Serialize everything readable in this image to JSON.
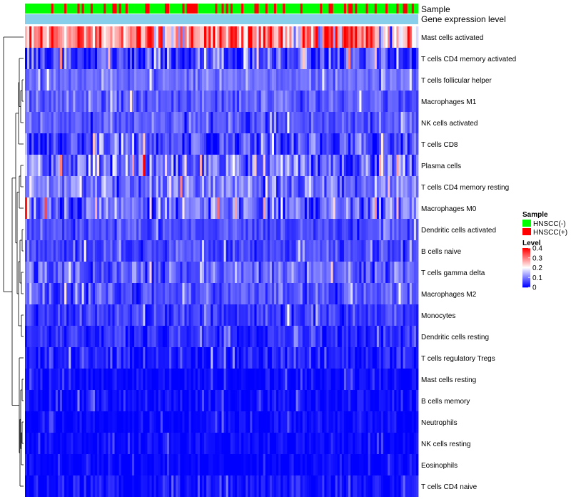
{
  "chart_data": {
    "type": "heatmap",
    "annotation_tracks": [
      "Sample",
      "Gene expression level"
    ],
    "rows": [
      {
        "label": "Mast cells activated",
        "mean": 0.28,
        "spread": 0.13
      },
      {
        "label": "T cells CD4 memory activated",
        "mean": 0.05,
        "spread": 0.07
      },
      {
        "label": "T cells follicular helper",
        "mean": 0.085,
        "spread": 0.03
      },
      {
        "label": "Macrophages M1",
        "mean": 0.075,
        "spread": 0.035
      },
      {
        "label": "NK cells activated",
        "mean": 0.07,
        "spread": 0.035
      },
      {
        "label": "T cells CD8",
        "mean": 0.06,
        "spread": 0.06
      },
      {
        "label": "Plasma cells",
        "mean": 0.09,
        "spread": 0.08
      },
      {
        "label": "T cells CD4 memory resting",
        "mean": 0.095,
        "spread": 0.06
      },
      {
        "label": "Macrophages M0",
        "mean": 0.09,
        "spread": 0.08
      },
      {
        "label": "Dendritic cells activated",
        "mean": 0.06,
        "spread": 0.03
      },
      {
        "label": "B cells naive",
        "mean": 0.055,
        "spread": 0.035
      },
      {
        "label": "T cells gamma delta",
        "mean": 0.08,
        "spread": 0.05
      },
      {
        "label": "Macrophages M2",
        "mean": 0.065,
        "spread": 0.04
      },
      {
        "label": "Monocytes",
        "mean": 0.045,
        "spread": 0.035
      },
      {
        "label": "Dendritic cells resting",
        "mean": 0.035,
        "spread": 0.035
      },
      {
        "label": "T cells regulatory  Tregs",
        "mean": 0.025,
        "spread": 0.04
      },
      {
        "label": "Mast cells resting",
        "mean": 0.006,
        "spread": 0.02
      },
      {
        "label": "B cells memory",
        "mean": 0.008,
        "spread": 0.025
      },
      {
        "label": "Neutrophils",
        "mean": 0.006,
        "spread": 0.02
      },
      {
        "label": "NK cells resting",
        "mean": 0.006,
        "spread": 0.02
      },
      {
        "label": "Eosinophils",
        "mean": 0.004,
        "spread": 0.015
      },
      {
        "label": "T cells CD4 naive",
        "mean": 0.01,
        "spread": 0.03
      }
    ],
    "n_samples": 180,
    "color_scale": {
      "min": 0,
      "max": 0.4,
      "ticks": [
        0.4,
        0.3,
        0.2,
        0.1,
        0
      ],
      "low": "#0000ff",
      "mid": "#ffffff",
      "high": "#ff0000",
      "mid_value": 0.2
    },
    "legend": {
      "sample_title": "Sample",
      "sample_entries": [
        {
          "label": "HNSCC(-)",
          "color": "#00ff00"
        },
        {
          "label": "HNSCC(+)",
          "color": "#ff0000"
        }
      ],
      "level_title": "Level",
      "level_ticks": [
        "0.4",
        "0.3",
        "0.2",
        "0.1",
        "0"
      ]
    },
    "annotation_colors": {
      "negative": "#00ff00",
      "positive": "#ff0000",
      "expression_track": "#87ceeb"
    },
    "positive_fraction": 0.3
  }
}
